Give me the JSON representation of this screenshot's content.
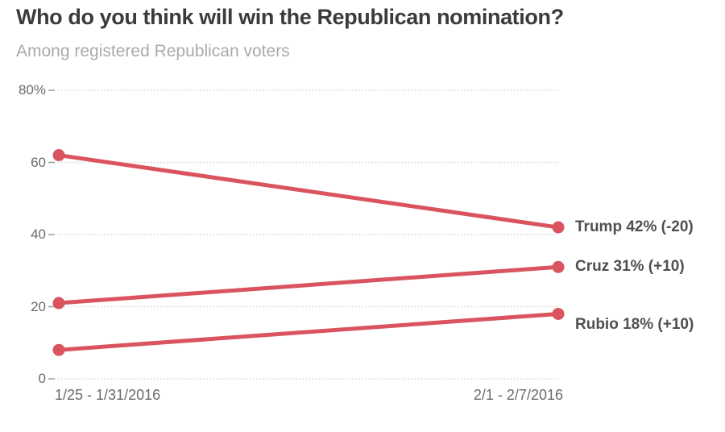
{
  "header": {
    "title": "Who do you think will win the Republican nomination?",
    "subtitle": "Among registered Republican voters"
  },
  "colors": {
    "line": "#d9545e",
    "title_text": "#3b3b3b",
    "subtitle_text": "#aaaaaa",
    "axis_text": "#6b6b6b",
    "series_label_text": "#4f4f4f",
    "gridline": "#d4d4d4",
    "tick_mark": "#9a9a9a",
    "background": "#ffffff"
  },
  "chart_data": {
    "type": "line",
    "title": "Who do you think will win the Republican nomination?",
    "subtitle": "Among registered Republican voters",
    "x_categories": [
      "1/25 - 1/31/2016",
      "2/1 - 2/7/2016"
    ],
    "ylim": [
      0,
      80
    ],
    "grid": "horizontal-dotted",
    "legend_position": "right-inline-labels",
    "y_ticks": [
      {
        "value": 80,
        "label": "80%"
      },
      {
        "value": 60,
        "label": "60"
      },
      {
        "value": 40,
        "label": "40"
      },
      {
        "value": 20,
        "label": "20"
      },
      {
        "value": 0,
        "label": "0"
      }
    ],
    "series": [
      {
        "name": "Trump",
        "values": [
          62,
          42
        ],
        "change": -20,
        "end_label": "Trump 42% (-20)",
        "label_y_nudge": 0
      },
      {
        "name": "Cruz",
        "values": [
          21,
          31
        ],
        "change": 10,
        "end_label": "Cruz 31% (+10)",
        "label_y_nudge": 0
      },
      {
        "name": "Rubio",
        "values": [
          8,
          18
        ],
        "change": 10,
        "end_label": "Rubio 18% (+10)",
        "label_y_nudge": 14
      }
    ]
  }
}
